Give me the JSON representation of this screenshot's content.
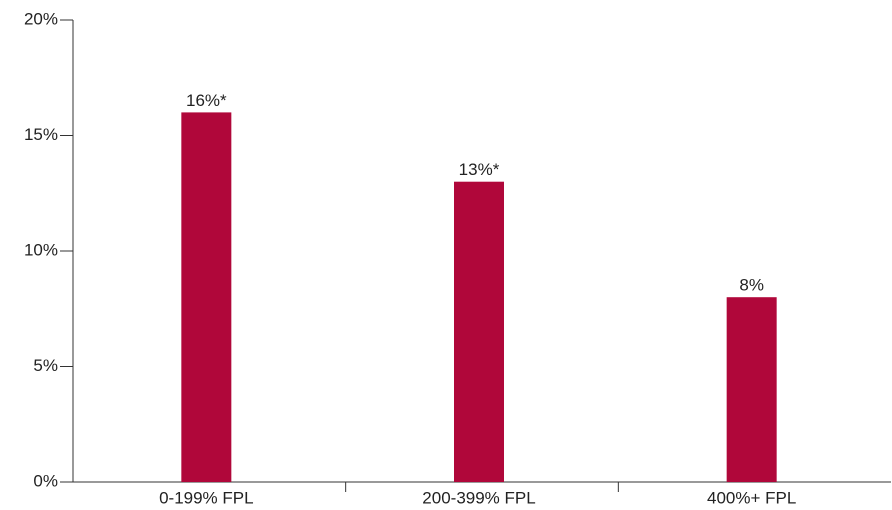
{
  "chart_data": {
    "type": "bar",
    "categories": [
      "0-199% FPL",
      "200-399% FPL",
      "400%+ FPL"
    ],
    "values": [
      16,
      13,
      8
    ],
    "value_labels": [
      "16%*",
      "13%*",
      "8%"
    ],
    "color": "#b0073a",
    "ylim": [
      0,
      20
    ],
    "yticks": [
      {
        "value": 0,
        "label": "0%"
      },
      {
        "value": 5,
        "label": "5%"
      },
      {
        "value": 10,
        "label": "10%"
      },
      {
        "value": 15,
        "label": "15%"
      },
      {
        "value": 20,
        "label": "20%"
      }
    ],
    "grid": false
  }
}
